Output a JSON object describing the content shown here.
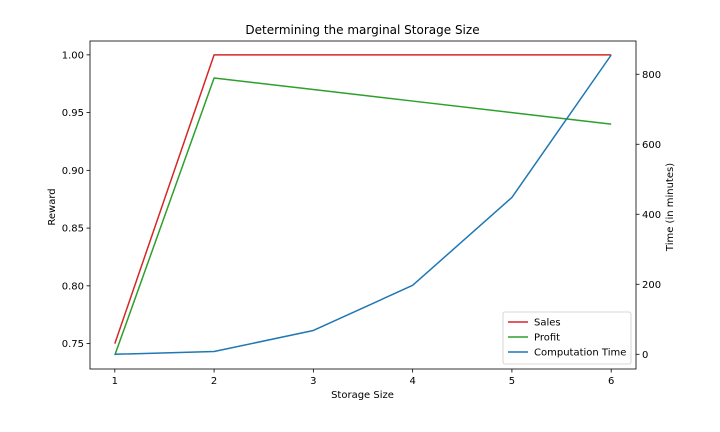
{
  "chart_data": {
    "type": "line",
    "title": "Determining the marginal Storage Size",
    "xlabel": "Storage Size",
    "ylabel_left": "Reward",
    "ylabel_right": "Time (in minutes)",
    "x": [
      1,
      2,
      3,
      4,
      5,
      6
    ],
    "xlim": [
      0.75,
      6.25
    ],
    "ylim_left": [
      0.728,
      1.012
    ],
    "ylim_right": [
      -42,
      895
    ],
    "xticks": [
      1,
      2,
      3,
      4,
      5,
      6
    ],
    "yticks_left": [
      "0.75",
      "0.80",
      "0.85",
      "0.90",
      "0.95",
      "1.00"
    ],
    "yticks_right": [
      "0",
      "200",
      "400",
      "600",
      "800"
    ],
    "series": [
      {
        "name": "Sales",
        "axis": "left",
        "color": "#d62728",
        "values": [
          0.75,
          1.0,
          1.0,
          1.0,
          1.0,
          1.0
        ]
      },
      {
        "name": "Profit",
        "axis": "left",
        "color": "#2ca02c",
        "values": [
          0.74,
          0.98,
          0.97,
          0.96,
          0.95,
          0.94
        ]
      },
      {
        "name": "Computation Time",
        "axis": "right",
        "color": "#1f77b4",
        "values": [
          0,
          8,
          68,
          197,
          448,
          855
        ]
      }
    ],
    "legend_position": "bottom-right",
    "grid": false
  }
}
